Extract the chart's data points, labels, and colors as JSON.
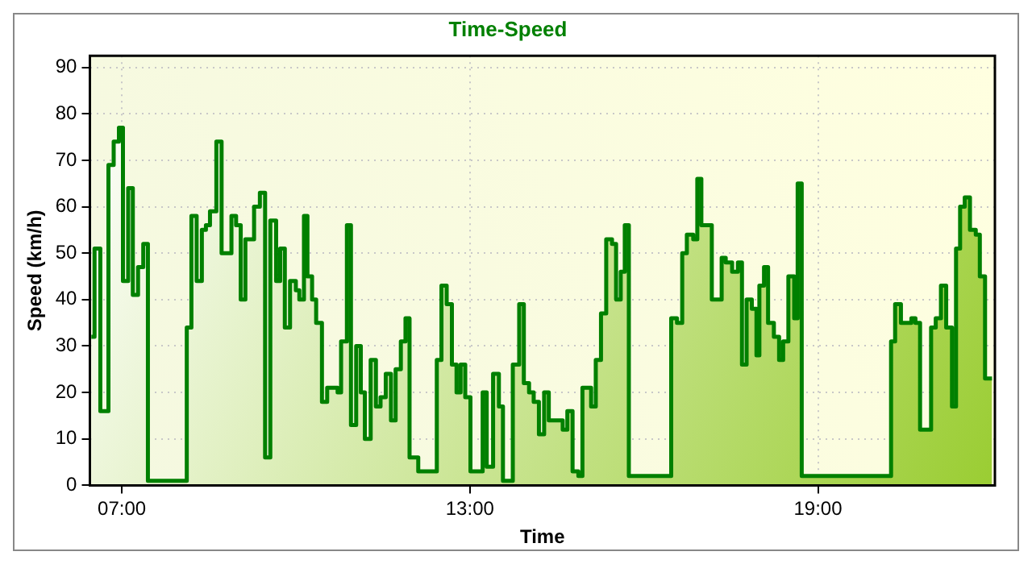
{
  "chart_data": {
    "type": "area",
    "title": "Time-Speed",
    "xlabel": "Time",
    "ylabel": "Speed (km/h)",
    "xlim": [
      6.45,
      22.05
    ],
    "xticks": [
      {
        "value": 7,
        "label": "07:00"
      },
      {
        "value": 13,
        "label": "13:00"
      },
      {
        "value": 19,
        "label": "19:00"
      }
    ],
    "ylim": [
      0,
      92.5
    ],
    "yticks": [
      0,
      10,
      20,
      30,
      40,
      50,
      60,
      70,
      80,
      90
    ],
    "grid": true,
    "legend": false,
    "marker": "none",
    "line_style": "solid",
    "series": [
      {
        "color": "#008000",
        "x": [
          6.475,
          6.53,
          6.53,
          6.63,
          6.63,
          6.77,
          6.77,
          6.86,
          6.86,
          6.95,
          6.95,
          7.02,
          7.02,
          7.11,
          7.11,
          7.19,
          7.19,
          7.28,
          7.28,
          7.37,
          7.37,
          7.45,
          7.45,
          8.12,
          8.12,
          8.2,
          8.2,
          8.29,
          8.29,
          8.38,
          8.38,
          8.45,
          8.45,
          8.52,
          8.52,
          8.63,
          8.63,
          8.72,
          8.72,
          8.89,
          8.89,
          8.97,
          8.97,
          9.05,
          9.05,
          9.13,
          9.13,
          9.28,
          9.28,
          9.38,
          9.38,
          9.47,
          9.47,
          9.56,
          9.56,
          9.66,
          9.66,
          9.73,
          9.73,
          9.81,
          9.81,
          9.9,
          9.9,
          10.0,
          10.0,
          10.06,
          10.06,
          10.14,
          10.14,
          10.2,
          10.2,
          10.28,
          10.28,
          10.35,
          10.35,
          10.45,
          10.45,
          10.54,
          10.54,
          10.72,
          10.72,
          10.78,
          10.78,
          10.88,
          10.88,
          10.95,
          10.95,
          11.04,
          11.04,
          11.12,
          11.12,
          11.19,
          11.19,
          11.29,
          11.29,
          11.38,
          11.38,
          11.46,
          11.46,
          11.55,
          11.55,
          11.64,
          11.64,
          11.72,
          11.72,
          11.81,
          11.81,
          11.89,
          11.89,
          11.96,
          11.96,
          12.11,
          12.11,
          12.43,
          12.43,
          12.51,
          12.51,
          12.6,
          12.6,
          12.69,
          12.69,
          12.77,
          12.77,
          12.84,
          12.84,
          12.92,
          12.92,
          13.01,
          13.01,
          13.22,
          13.22,
          13.29,
          13.29,
          13.4,
          13.4,
          13.5,
          13.5,
          13.57,
          13.57,
          13.74,
          13.74,
          13.85,
          13.85,
          13.93,
          13.93,
          14.02,
          14.02,
          14.1,
          14.1,
          14.19,
          14.19,
          14.28,
          14.28,
          14.36,
          14.36,
          14.6,
          14.6,
          14.68,
          14.68,
          14.77,
          14.77,
          14.87,
          14.87,
          14.94,
          14.94,
          15.09,
          15.09,
          15.17,
          15.17,
          15.26,
          15.26,
          15.35,
          15.35,
          15.45,
          15.45,
          15.52,
          15.52,
          15.6,
          15.6,
          15.67,
          15.67,
          15.74,
          15.74,
          16.47,
          16.47,
          16.57,
          16.57,
          16.66,
          16.66,
          16.74,
          16.74,
          16.85,
          16.85,
          16.92,
          16.92,
          16.99,
          16.99,
          17.17,
          17.17,
          17.34,
          17.34,
          17.41,
          17.41,
          17.52,
          17.52,
          17.62,
          17.62,
          17.69,
          17.69,
          17.77,
          17.77,
          17.86,
          17.86,
          17.94,
          17.94,
          17.99,
          17.99,
          18.07,
          18.07,
          18.14,
          18.14,
          18.24,
          18.24,
          18.33,
          18.33,
          18.4,
          18.4,
          18.49,
          18.49,
          18.59,
          18.59,
          18.65,
          18.65,
          18.72,
          18.72,
          20.26,
          20.26,
          20.33,
          20.33,
          20.43,
          20.43,
          20.61,
          20.61,
          20.68,
          20.68,
          20.76,
          20.76,
          20.95,
          20.95,
          21.03,
          21.03,
          21.12,
          21.12,
          21.21,
          21.21,
          21.31,
          21.31,
          21.38,
          21.38,
          21.45,
          21.45,
          21.53,
          21.53,
          21.62,
          21.62,
          21.72,
          21.72,
          21.79,
          21.79,
          21.88,
          21.88,
          22.0
        ],
        "values": [
          32,
          32,
          51,
          51,
          16,
          16,
          69,
          69,
          74,
          74,
          77,
          77,
          44,
          44,
          64,
          64,
          41,
          41,
          47,
          47,
          52,
          52,
          1,
          1,
          34,
          34,
          58,
          58,
          44,
          44,
          55,
          55,
          56,
          56,
          59,
          59,
          74,
          74,
          50,
          50,
          58,
          58,
          56,
          56,
          40,
          40,
          53,
          53,
          60,
          60,
          63,
          63,
          6,
          6,
          57,
          57,
          44,
          44,
          51,
          51,
          34,
          34,
          44,
          44,
          42,
          42,
          40,
          40,
          58,
          58,
          45,
          45,
          40,
          40,
          35,
          35,
          18,
          18,
          21,
          21,
          20,
          20,
          31,
          31,
          56,
          56,
          13,
          13,
          30,
          30,
          20,
          20,
          10,
          10,
          27,
          27,
          17,
          17,
          19,
          19,
          24,
          24,
          14,
          14,
          25,
          25,
          31,
          31,
          36,
          36,
          6,
          6,
          3,
          3,
          27,
          27,
          43,
          43,
          39,
          39,
          26,
          26,
          20,
          20,
          26,
          26,
          19,
          19,
          3,
          3,
          20,
          20,
          4,
          4,
          24,
          24,
          17,
          17,
          1,
          1,
          26,
          26,
          39,
          39,
          22,
          22,
          20,
          20,
          18,
          18,
          11,
          11,
          20,
          20,
          14,
          14,
          12,
          12,
          16,
          16,
          3,
          3,
          2,
          2,
          21,
          21,
          17,
          17,
          27,
          27,
          37,
          37,
          53,
          53,
          52,
          52,
          40,
          40,
          46,
          46,
          56,
          56,
          2,
          2,
          36,
          36,
          35,
          35,
          50,
          50,
          54,
          54,
          53,
          53,
          66,
          66,
          56,
          56,
          40,
          40,
          49,
          49,
          48,
          48,
          46,
          46,
          48,
          48,
          26,
          26,
          40,
          40,
          38,
          38,
          28,
          28,
          43,
          43,
          47,
          47,
          35,
          35,
          32,
          32,
          27,
          27,
          31,
          31,
          45,
          45,
          36,
          36,
          65,
          65,
          2,
          2,
          31,
          31,
          39,
          39,
          35,
          35,
          36,
          36,
          35,
          35,
          12,
          12,
          34,
          34,
          36,
          36,
          43,
          43,
          34,
          34,
          17,
          17,
          51,
          51,
          60,
          60,
          62,
          62,
          55,
          55,
          54,
          54,
          45,
          45,
          23,
          23
        ]
      }
    ]
  }
}
